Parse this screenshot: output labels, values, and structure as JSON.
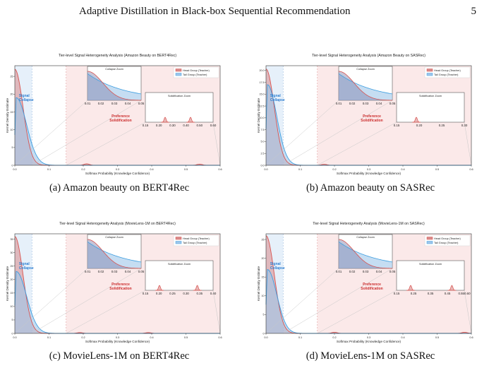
{
  "header": {
    "running_title": "Adaptive Distillation in Black-box Sequential Recommendation",
    "page_number": "5"
  },
  "colors": {
    "head": "#d9534f",
    "head_fill": "#d98b8b",
    "tail": "#3d9ee0",
    "tail_fill": "#9fc6ea",
    "overlap_fill": "#7f7fa8",
    "collapse_band": "#e6f0fa",
    "solid_band": "#fbe9e9",
    "collapse_text": "#2f7fd1",
    "solid_text": "#cc2f2f"
  },
  "common": {
    "xlabel": "Softmax Probability (Knowledge Confidence)",
    "ylabel": "Kernel Density Estimate",
    "legend": [
      "Head Group (Teacher)",
      "Tail Group (Teacher)"
    ],
    "collapse_zoom_title": "Collapse Zoom",
    "solid_zoom_title": "Solidification Zoom",
    "signal_collapse": [
      "Signal",
      "Collapse"
    ],
    "preference_solidification": [
      "Preference",
      "Solidification"
    ]
  },
  "chart_data": [
    {
      "type": "line",
      "title": "Tier-level Signal Heterogeneity Analysis (Amazon Beauty on BERT4Rec)",
      "caption": "(a) Amazon beauty on BERT4Rec",
      "xlim": [
        0,
        0.6
      ],
      "ylim": [
        0,
        28
      ],
      "xticks": [
        "0.0",
        "0.1",
        "0.2",
        "0.3",
        "0.4",
        "0.5",
        "0.6"
      ],
      "yticks": [
        "0",
        "5",
        "10",
        "15",
        "20",
        "25"
      ],
      "head_peak": 27,
      "tail_peak": 19,
      "tail_width": 0.055,
      "head_bumps": [
        [
          0.21,
          0.4
        ],
        [
          0.54,
          0.3
        ]
      ],
      "collapse_zoom_xticks": [
        "0.01",
        "0.02",
        "0.03",
        "0.04",
        "0.05"
      ],
      "solid_zoom_xticks": [
        "0.15",
        "0.20",
        "0.30",
        "0.40",
        "0.50",
        "0.60"
      ],
      "solid_zoom_bumps": [
        0.25,
        0.7
      ]
    },
    {
      "type": "line",
      "title": "Tier-level Signal Heterogeneity Analysis (Amazon Beauty on SASRec)",
      "caption": "(b) Amazon beauty on SASRec",
      "xlim": [
        0,
        0.6
      ],
      "ylim": [
        0,
        21
      ],
      "xticks": [
        "0.0",
        "0.1",
        "0.2",
        "0.3",
        "0.4",
        "0.5",
        "0.6"
      ],
      "yticks": [
        "0.0",
        "2.5",
        "5.0",
        "7.5",
        "10.0",
        "12.5",
        "15.0",
        "17.5",
        "20.0"
      ],
      "head_peak": 20.3,
      "tail_peak": 17,
      "tail_width": 0.05,
      "head_bumps": [
        [
          0.17,
          0.2
        ]
      ],
      "collapse_zoom_xticks": [
        "0.01",
        "0.02",
        "0.03",
        "0.04",
        "0.05"
      ],
      "solid_zoom_xticks": [
        "0.15",
        "0.20",
        "0.25",
        "0.30"
      ],
      "solid_zoom_bumps": [
        0.25
      ]
    },
    {
      "type": "line",
      "title": "Tier-level Signal Heterogeneity Analysis (MovieLens-1M on BERT4Rec)",
      "caption": "(c) MovieLens-1M on BERT4Rec",
      "xlim": [
        0,
        0.6
      ],
      "ylim": [
        0,
        37
      ],
      "xticks": [
        "0.0",
        "0.1",
        "0.2",
        "0.3",
        "0.4",
        "0.5",
        "0.6"
      ],
      "yticks": [
        "0",
        "5",
        "10",
        "15",
        "20",
        "25",
        "30",
        "35"
      ],
      "head_peak": 36,
      "tail_peak": 23,
      "tail_width": 0.055,
      "head_bumps": [
        [
          0.19,
          0.3
        ],
        [
          0.39,
          0.3
        ]
      ],
      "collapse_zoom_xticks": [
        "0.01",
        "0.02",
        "0.03",
        "0.04",
        "0.05"
      ],
      "solid_zoom_xticks": [
        "0.15",
        "0.20",
        "0.25",
        "0.30",
        "0.35",
        "0.40"
      ],
      "solid_zoom_bumps": [
        0.15,
        0.82
      ]
    },
    {
      "type": "line",
      "title": "Tier-level Signal Heterogeneity Analysis (MovieLens-1M on SASRec)",
      "caption": "(d) MovieLens-1M on SASRec",
      "xlim": [
        0,
        0.6
      ],
      "ylim": [
        0,
        26.5
      ],
      "xticks": [
        "0.0",
        "0.1",
        "0.2",
        "0.3",
        "0.4",
        "0.5",
        "0.6"
      ],
      "yticks": [
        "0",
        "5",
        "10",
        "15",
        "20",
        "25"
      ],
      "head_peak": 26,
      "tail_peak": 17,
      "tail_width": 0.05,
      "head_bumps": [
        [
          0.2,
          0.3
        ],
        [
          0.58,
          0.3
        ]
      ],
      "collapse_zoom_xticks": [
        "0.01",
        "0.02",
        "0.03",
        "0.04",
        "0.05"
      ],
      "solid_zoom_xticks": [
        "0.15",
        "0.25",
        "0.35",
        "0.45",
        "0.550.60"
      ],
      "solid_zoom_bumps": [
        0.15,
        0.88
      ]
    }
  ]
}
